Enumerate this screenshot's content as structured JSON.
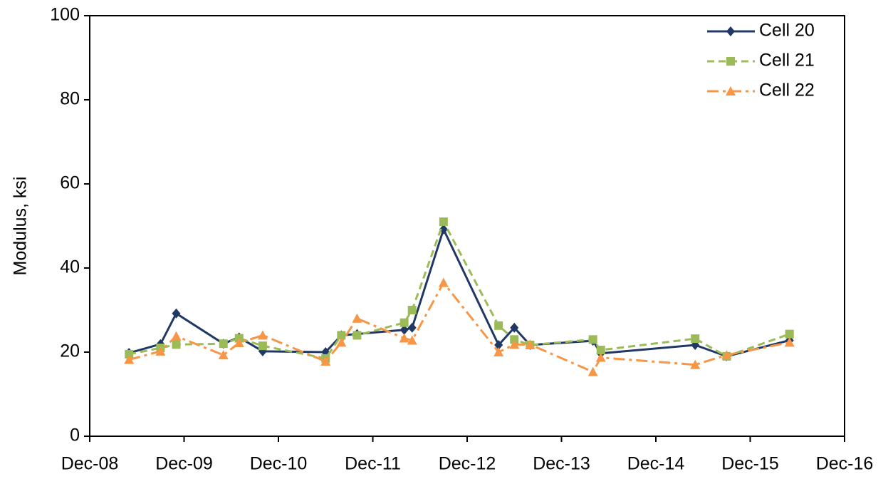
{
  "chart_data": {
    "type": "line",
    "y_label": "Modulus, ksi",
    "x": [
      "2009-05",
      "2009-09",
      "2009-11",
      "2010-05",
      "2010-07",
      "2010-10",
      "2011-06",
      "2011-08",
      "2011-10",
      "2012-04",
      "2012-05",
      "2012-09",
      "2013-04",
      "2013-06",
      "2013-08",
      "2014-04",
      "2014-05",
      "2015-05",
      "2015-09",
      "2016-05"
    ],
    "series": [
      {
        "name": "Cell 20",
        "color": "#203864",
        "marker": "diamond",
        "dash": "solid",
        "values": [
          19.8,
          21.9,
          29.2,
          22,
          23.5,
          20.2,
          20,
          24,
          24.3,
          25.3,
          25.8,
          49.2,
          21.7,
          25.8,
          21.7,
          22.7,
          19.7,
          21.7,
          19,
          22.8
        ]
      },
      {
        "name": "Cell 21",
        "color": "#9bbb59",
        "marker": "square",
        "dash": "dash",
        "values": [
          19.5,
          21,
          21.8,
          22,
          23.3,
          21.5,
          18.5,
          24,
          24,
          27,
          30,
          51,
          26.3,
          23,
          21.7,
          23,
          20.5,
          23.2,
          19,
          24.3
        ]
      },
      {
        "name": "Cell 22",
        "color": "#f79646",
        "marker": "triangle",
        "dash": "dashdot",
        "values": [
          18.2,
          20.2,
          23.8,
          19.3,
          22.2,
          24,
          17.8,
          22.3,
          28,
          23.3,
          22.8,
          36.5,
          20,
          21.8,
          21.8,
          15.3,
          18.7,
          17,
          19.3,
          22.3
        ]
      }
    ],
    "xlim": [
      "2008-12",
      "2016-12"
    ],
    "xticks": [
      {
        "value": "2008-12",
        "label": "Dec-08"
      },
      {
        "value": "2009-12",
        "label": "Dec-09"
      },
      {
        "value": "2010-12",
        "label": "Dec-10"
      },
      {
        "value": "2011-12",
        "label": "Dec-11"
      },
      {
        "value": "2012-12",
        "label": "Dec-12"
      },
      {
        "value": "2013-12",
        "label": "Dec-13"
      },
      {
        "value": "2014-12",
        "label": "Dec-14"
      },
      {
        "value": "2015-12",
        "label": "Dec-15"
      },
      {
        "value": "2016-12",
        "label": "Dec-16"
      }
    ],
    "ylim": [
      0,
      100
    ],
    "yticks": [
      0,
      20,
      40,
      60,
      80,
      100
    ],
    "grid": false,
    "legend": "upper right"
  }
}
